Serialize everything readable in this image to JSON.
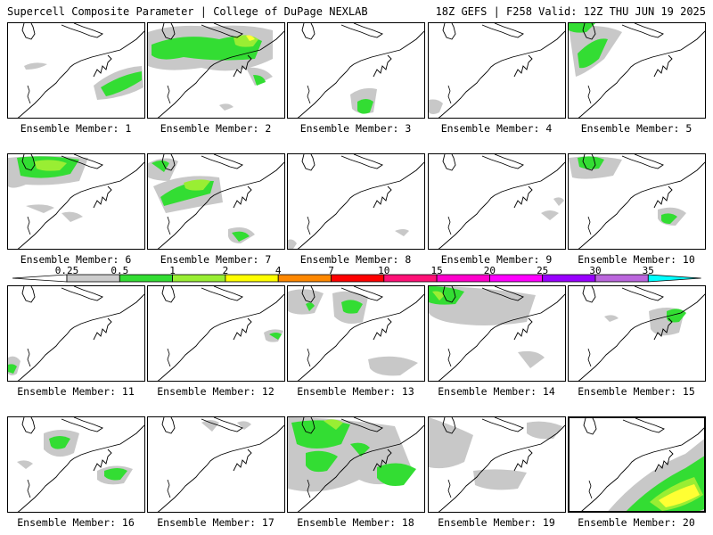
{
  "header": {
    "left": "Supercell Composite Parameter | College of DuPage NEXLAB",
    "right": "18Z GEFS | F258 Valid: 12Z THU JUN 19 2025"
  },
  "legend": {
    "labels": [
      "0.25",
      "0.5",
      "1",
      "2",
      "4",
      "7",
      "10",
      "15",
      "20",
      "25",
      "30",
      "35"
    ],
    "colors": [
      "#cccccc",
      "#33dd33",
      "#99ee33",
      "#ffff00",
      "#ff8800",
      "#ff0000",
      "#ff1177",
      "#ff00cc",
      "#ff00ff",
      "#9900ff",
      "#bb66dd",
      "#00ffff"
    ]
  },
  "members": [
    {
      "label": "Ensemble Member: 1"
    },
    {
      "label": "Ensemble Member: 2"
    },
    {
      "label": "Ensemble Member: 3"
    },
    {
      "label": "Ensemble Member: 4"
    },
    {
      "label": "Ensemble Member: 5"
    },
    {
      "label": "Ensemble Member: 6"
    },
    {
      "label": "Ensemble Member: 7"
    },
    {
      "label": "Ensemble Member: 8"
    },
    {
      "label": "Ensemble Member: 9"
    },
    {
      "label": "Ensemble Member: 10"
    },
    {
      "label": "Ensemble Member: 11"
    },
    {
      "label": "Ensemble Member: 12"
    },
    {
      "label": "Ensemble Member: 13"
    },
    {
      "label": "Ensemble Member: 14"
    },
    {
      "label": "Ensemble Member: 15"
    },
    {
      "label": "Ensemble Member: 16"
    },
    {
      "label": "Ensemble Member: 17"
    },
    {
      "label": "Ensemble Member: 18"
    },
    {
      "label": "Ensemble Member: 19"
    },
    {
      "label": "Ensemble Member: 20"
    }
  ]
}
